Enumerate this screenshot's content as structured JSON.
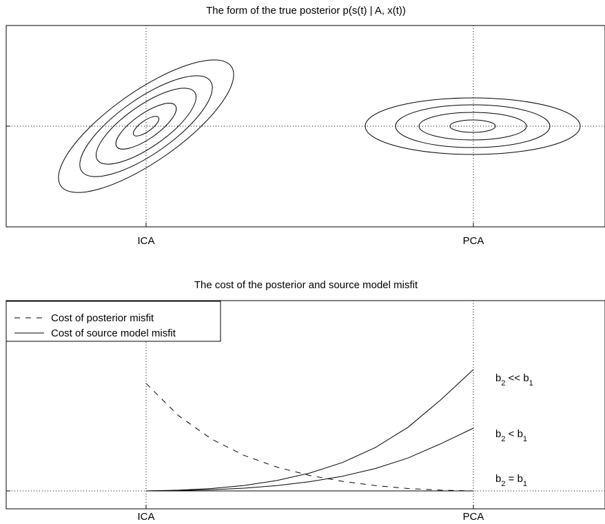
{
  "chart_data": [
    {
      "type": "contour",
      "title": "The form of the true posterior p(s(t) | A, x(t))",
      "x_ticks": [
        "ICA",
        "PCA"
      ],
      "y_ticks": [],
      "grid": "dotted lines through the tick positions",
      "series": [
        {
          "center": "ICA",
          "shape": "tilted ellipses",
          "levels": 5
        },
        {
          "center": "PCA",
          "shape": "axis-aligned ellipses",
          "levels": 4
        }
      ]
    },
    {
      "type": "line",
      "title": "The cost of the posterior and source model misfit",
      "x_ticks": [
        "ICA",
        "PCA"
      ],
      "x": [
        0,
        0.1,
        0.2,
        0.3,
        0.4,
        0.5,
        0.6,
        0.7,
        0.8,
        0.9,
        1
      ],
      "ylim": [
        0,
        1
      ],
      "grid": "dotted lines through the tick positions",
      "legend_position": "top-left",
      "series": [
        {
          "name": "Cost of posterior misfit",
          "style": "dashed",
          "values": [
            0.885,
            0.618,
            0.427,
            0.292,
            0.196,
            0.127,
            0.079,
            0.044,
            0.02,
            0.006,
            0.0
          ]
        },
        {
          "name": "Cost of source model misfit",
          "style": "solid",
          "label": "b2 << b1",
          "values": [
            0.0,
            0.006,
            0.02,
            0.045,
            0.086,
            0.147,
            0.234,
            0.357,
            0.524,
            0.75,
            1.0
          ]
        },
        {
          "name": "Cost of source model misfit",
          "style": "solid",
          "label": "b2 < b1",
          "values": [
            0.0,
            0.003,
            0.01,
            0.023,
            0.044,
            0.076,
            0.121,
            0.184,
            0.271,
            0.388,
            0.517
          ]
        },
        {
          "name": "Cost of source model misfit",
          "style": "solid",
          "label": "b2 = b1",
          "values": [
            0,
            0,
            0,
            0,
            0,
            0,
            0,
            0,
            0,
            0,
            0
          ]
        }
      ],
      "annotations": [
        {
          "text": "b",
          "sub": "2",
          "op": " << b",
          "sub2": "1"
        },
        {
          "text": "b",
          "sub": "2",
          "op": " < b",
          "sub2": "1"
        },
        {
          "text": "b",
          "sub": "2",
          "op": " = b",
          "sub2": "1"
        }
      ]
    }
  ]
}
